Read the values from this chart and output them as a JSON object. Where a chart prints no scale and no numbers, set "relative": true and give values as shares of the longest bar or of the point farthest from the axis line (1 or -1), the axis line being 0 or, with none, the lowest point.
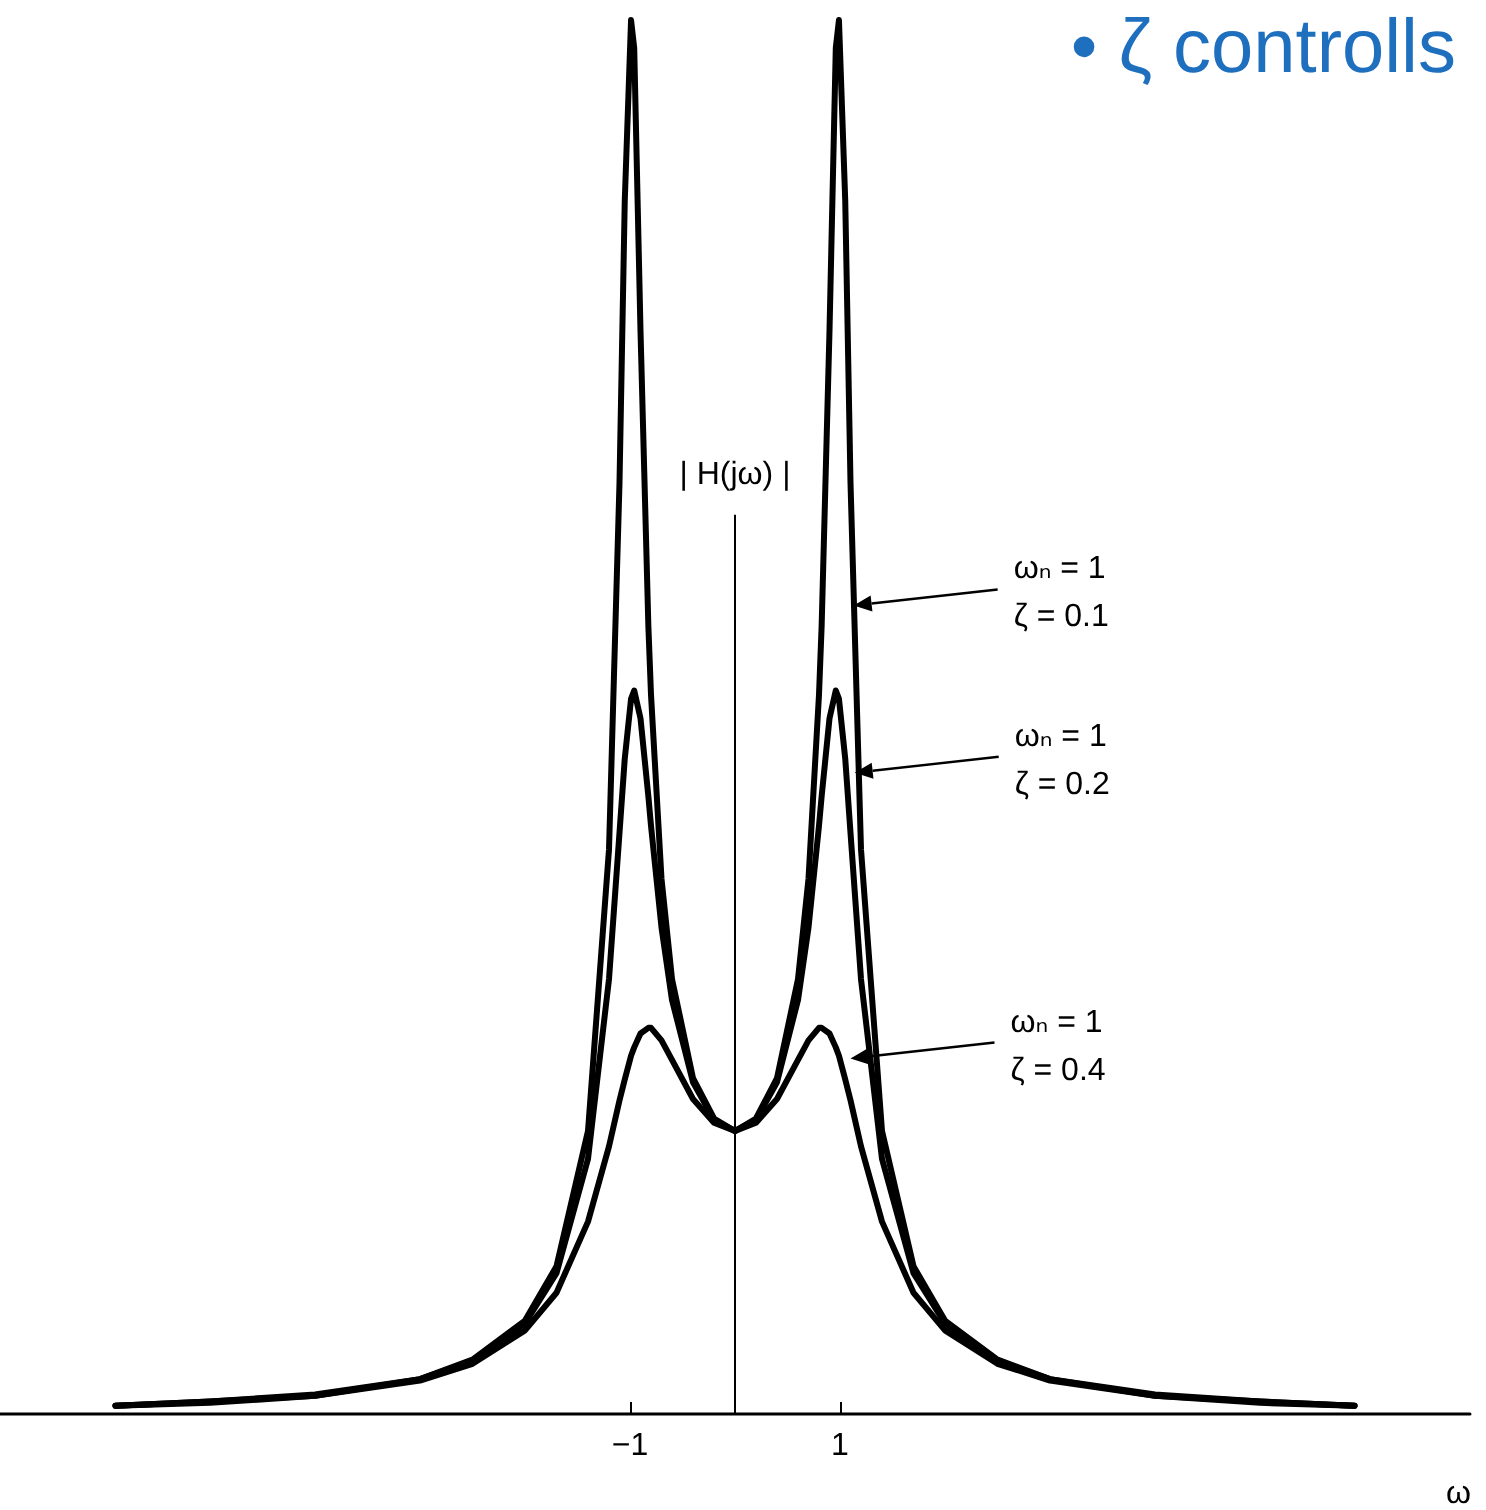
{
  "chart_data": {
    "type": "line",
    "relative": true,
    "title": "• ζ controlls",
    "xlabel": "ω",
    "xlim": [
      -7,
      7
    ],
    "xticks": [
      {
        "value": -1,
        "label": "−1"
      },
      1
    ],
    "marker": "none",
    "line_style": "solid",
    "x": [
      -5.9,
      -5,
      -4,
      -3,
      -2.5,
      -2,
      -1.7,
      -1.4,
      -1.2,
      -1.1,
      -1.05,
      -0.99,
      -0.96,
      -0.9,
      -0.825,
      -0.8,
      -0.7,
      -0.6,
      -0.4,
      -0.2,
      0,
      0.2,
      0.4,
      0.6,
      0.7,
      0.8,
      0.825,
      0.9,
      0.96,
      0.99,
      1.05,
      1.1,
      1.2,
      1.4,
      1.7,
      2,
      2.5,
      3,
      4,
      5,
      5.9
    ],
    "series": [
      {
        "color": "#000000",
        "values": [
          0.006,
          0.009,
          0.014,
          0.025,
          0.039,
          0.067,
          0.106,
          0.203,
          0.405,
          0.668,
          0.87,
          1,
          0.98,
          0.777,
          0.565,
          0.516,
          0.384,
          0.312,
          0.241,
          0.212,
          0.203,
          0.212,
          0.241,
          0.312,
          0.384,
          0.516,
          0.565,
          0.777,
          0.98,
          1,
          0.87,
          0.668,
          0.405,
          0.203,
          0.106,
          0.067,
          0.039,
          0.025,
          0.014,
          0.009,
          0.006
        ]
      },
      {
        "color": "#000000",
        "values": [
          0.006,
          0.009,
          0.013,
          0.025,
          0.038,
          0.065,
          0.101,
          0.183,
          0.312,
          0.417,
          0.47,
          0.513,
          0.519,
          0.499,
          0.443,
          0.422,
          0.349,
          0.297,
          0.238,
          0.211,
          0.203,
          0.211,
          0.238,
          0.297,
          0.349,
          0.422,
          0.443,
          0.499,
          0.519,
          0.513,
          0.47,
          0.417,
          0.312,
          0.183,
          0.101,
          0.065,
          0.038,
          0.025,
          0.013,
          0.009,
          0.006
        ]
      },
      {
        "color": "#000000",
        "values": [
          0.006,
          0.008,
          0.013,
          0.024,
          0.036,
          0.06,
          0.087,
          0.138,
          0.192,
          0.225,
          0.24,
          0.257,
          0.263,
          0.273,
          0.277,
          0.277,
          0.268,
          0.254,
          0.226,
          0.209,
          0.203,
          0.209,
          0.226,
          0.254,
          0.268,
          0.277,
          0.277,
          0.273,
          0.263,
          0.257,
          0.24,
          0.225,
          0.192,
          0.138,
          0.087,
          0.06,
          0.036,
          0.024,
          0.013,
          0.008,
          0.006
        ]
      }
    ],
    "ref_lines": [
      {
        "axis": "x",
        "value": 0,
        "label": "| H(jω) |"
      }
    ],
    "annotations": [
      {
        "text": "ωₙ = 1\nζ = 0.1",
        "x": 1.13,
        "y": 0.58
      },
      {
        "text": "ωₙ = 1\nζ = 0.2",
        "x": 1.14,
        "y": 0.46
      },
      {
        "text": "ωₙ = 1\nζ = 0.4",
        "x": 1.1,
        "y": 0.255
      }
    ]
  }
}
